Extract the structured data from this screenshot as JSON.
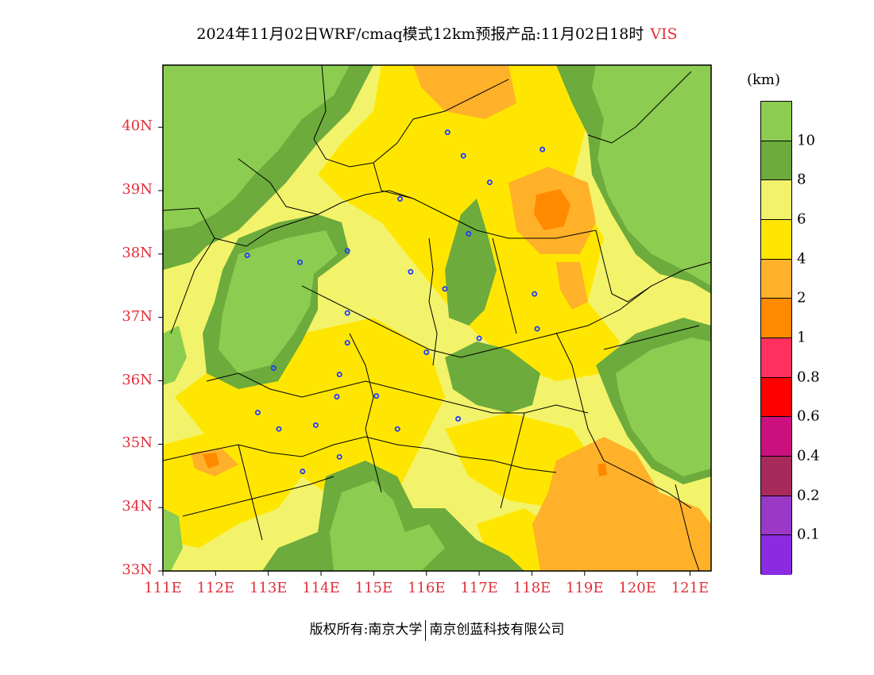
{
  "title": {
    "main": "2024年11月02日WRF/cmaq模式12km预报产品:11月02日18时",
    "variable": "VIS"
  },
  "axes": {
    "lat_labels": [
      "40N",
      "39N",
      "38N",
      "37N",
      "36N",
      "35N",
      "34N",
      "33N"
    ],
    "lat_values": [
      40,
      39,
      38,
      37,
      36,
      35,
      34,
      33
    ],
    "lon_labels": [
      "111E",
      "112E",
      "113E",
      "114E",
      "115E",
      "116E",
      "117E",
      "118E",
      "119E",
      "120E",
      "121E"
    ],
    "lon_values": [
      111,
      112,
      113,
      114,
      115,
      116,
      117,
      118,
      119,
      120,
      121
    ],
    "lat_range": [
      33,
      40.98
    ],
    "lon_range": [
      111,
      121.4
    ]
  },
  "legend": {
    "unit": "(km)",
    "labels": [
      "10",
      "8",
      "6",
      "4",
      "2",
      "1",
      "0.8",
      "0.6",
      "0.4",
      "0.2",
      "0.1"
    ],
    "colors": [
      "#8ccc50",
      "#6cab3c",
      "#f2f36a",
      "#ffe600",
      "#ffb12a",
      "#ff8a00",
      "#ff2f5e",
      "#ff0000",
      "#cc1080",
      "#a82a5a",
      "#9a38c8",
      "#8a2be2"
    ]
  },
  "stations": [
    {
      "lon": 116.4,
      "lat": 39.92
    },
    {
      "lon": 116.7,
      "lat": 39.55
    },
    {
      "lon": 118.2,
      "lat": 39.65
    },
    {
      "lon": 117.2,
      "lat": 39.13
    },
    {
      "lon": 115.5,
      "lat": 38.87
    },
    {
      "lon": 116.8,
      "lat": 38.32
    },
    {
      "lon": 114.5,
      "lat": 38.05
    },
    {
      "lon": 113.6,
      "lat": 37.87
    },
    {
      "lon": 112.6,
      "lat": 37.98
    },
    {
      "lon": 115.7,
      "lat": 37.72
    },
    {
      "lon": 116.35,
      "lat": 37.45
    },
    {
      "lon": 118.05,
      "lat": 37.37
    },
    {
      "lon": 114.5,
      "lat": 37.07
    },
    {
      "lon": 118.1,
      "lat": 36.82
    },
    {
      "lon": 117.0,
      "lat": 36.67
    },
    {
      "lon": 114.5,
      "lat": 36.6
    },
    {
      "lon": 116.0,
      "lat": 36.45
    },
    {
      "lon": 113.1,
      "lat": 36.2
    },
    {
      "lon": 114.35,
      "lat": 36.1
    },
    {
      "lon": 114.3,
      "lat": 35.75
    },
    {
      "lon": 115.05,
      "lat": 35.76
    },
    {
      "lon": 112.8,
      "lat": 35.5
    },
    {
      "lon": 116.6,
      "lat": 35.4
    },
    {
      "lon": 113.9,
      "lat": 35.3
    },
    {
      "lon": 113.2,
      "lat": 35.24
    },
    {
      "lon": 115.45,
      "lat": 35.24
    },
    {
      "lon": 114.35,
      "lat": 34.8
    },
    {
      "lon": 113.65,
      "lat": 34.57
    }
  ],
  "footer": {
    "left": "版权所有:南京大学",
    "right": "南京创蓝科技有限公司"
  }
}
